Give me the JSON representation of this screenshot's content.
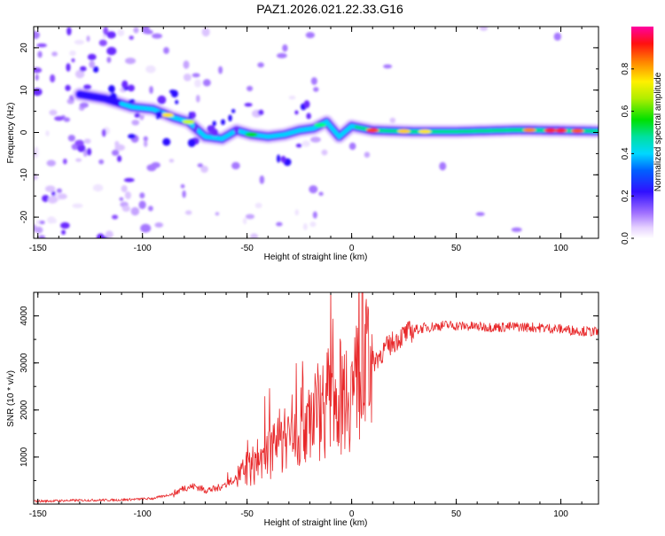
{
  "title": "PAZ1.2026.021.22.33.G16",
  "chart_data": [
    {
      "type": "heatmap",
      "xlabel": "Height of straight line (km)",
      "ylabel": "Frequency (Hz)",
      "xlim": [
        -152,
        118
      ],
      "ylim": [
        -25,
        25
      ],
      "xticks": [
        -150,
        -100,
        -50,
        0,
        50,
        100
      ],
      "yticks": [
        -20,
        -10,
        0,
        10,
        20
      ],
      "colorbar": {
        "label": "Normalized spectral amplitude",
        "ticks": [
          0.0,
          0.2,
          0.4,
          0.6,
          0.8
        ],
        "tick_labels": [
          "0.0",
          "0.2",
          "0.4",
          "0.6",
          "0.8"
        ],
        "range": [
          0,
          1
        ]
      },
      "ridge": {
        "x": [
          -130,
          -118,
          -105,
          -95,
          -85,
          -78,
          -70,
          -62,
          -55,
          -48,
          -40,
          -32,
          -25,
          -18,
          -12,
          -6,
          0,
          10,
          30,
          50,
          80,
          118
        ],
        "y": [
          9,
          8,
          6,
          5.5,
          3.5,
          2.5,
          -1,
          -1.5,
          0.5,
          -0.5,
          -1,
          -0.5,
          0.5,
          1,
          2.5,
          -1,
          1.5,
          0.5,
          0.2,
          0.2,
          0.6,
          0.3
        ]
      }
    },
    {
      "type": "line",
      "xlabel": "Height of straight line (km)",
      "ylabel": "SNR (10 * v/v)",
      "xlim": [
        -152,
        118
      ],
      "ylim": [
        0,
        4500
      ],
      "xticks": [
        -150,
        -100,
        -50,
        0,
        50,
        100
      ],
      "yticks": [
        1000,
        2000,
        3000,
        4000
      ],
      "color": "#e8282a",
      "series": [
        {
          "name": "SNR",
          "x": [
            -152,
            -130,
            -110,
            -95,
            -85,
            -80,
            -75,
            -70,
            -65,
            -60,
            -55,
            -50,
            -45,
            -40,
            -35,
            -30,
            -25,
            -20,
            -15,
            -10,
            -5,
            0,
            5,
            10,
            15,
            20,
            25,
            30,
            35,
            40,
            45,
            50,
            60,
            70,
            80,
            90,
            100,
            110,
            118
          ],
          "y": [
            60,
            80,
            90,
            120,
            220,
            350,
            380,
            300,
            320,
            430,
            560,
            700,
            900,
            1050,
            1300,
            1450,
            1650,
            1900,
            2050,
            2250,
            2300,
            2450,
            2700,
            3000,
            3250,
            3450,
            3600,
            3700,
            3750,
            3780,
            3800,
            3790,
            3770,
            3760,
            3770,
            3750,
            3720,
            3680,
            3650
          ]
        }
      ]
    }
  ]
}
